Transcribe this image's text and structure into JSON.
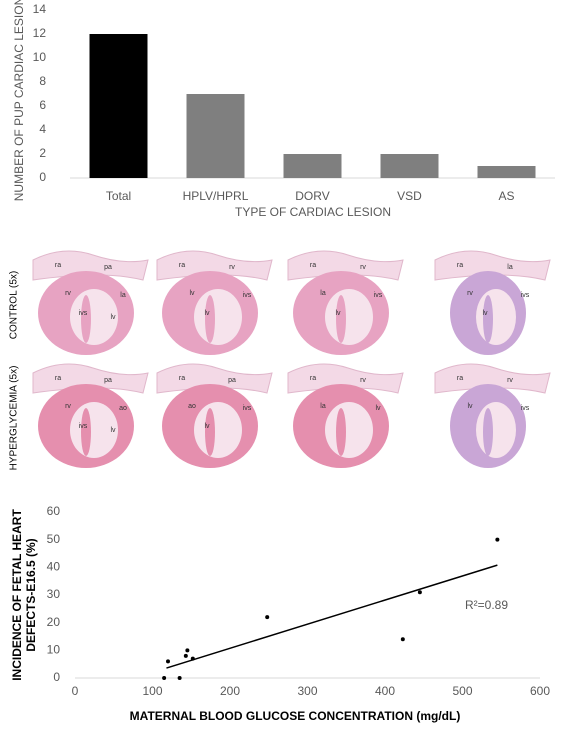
{
  "chart_data": [
    {
      "type": "bar",
      "categories": [
        "Total",
        "HPLV/HPRL",
        "DORV",
        "VSD",
        "AS"
      ],
      "values": [
        12,
        7,
        2,
        2,
        1
      ],
      "colors": [
        "#000000",
        "#7f7f7f",
        "#7f7f7f",
        "#7f7f7f",
        "#7f7f7f"
      ],
      "ylim": [
        0,
        14
      ],
      "yticks": [
        0,
        2,
        4,
        6,
        8,
        10,
        12,
        14
      ],
      "ylabel": "NUMBER OF PUP CARDIAC LESIONS",
      "xlabel": "TYPE OF CARDIAC LESION"
    },
    {
      "type": "scatter",
      "x": [
        115,
        120,
        135,
        143,
        145,
        152,
        248,
        423,
        445,
        545
      ],
      "values": [
        0,
        6,
        0,
        8,
        10,
        7,
        22,
        14,
        31,
        50
      ],
      "color": "#000000",
      "trendline": {
        "x": [
          118,
          545
        ],
        "y": [
          3.6,
          40.8
        ]
      },
      "annotation": "R²=0.89",
      "xlim": [
        0,
        600
      ],
      "xticks": [
        0,
        100,
        200,
        300,
        400,
        500,
        600
      ],
      "ylim": [
        0,
        60
      ],
      "yticks": [
        0,
        10,
        20,
        30,
        40,
        50,
        60
      ],
      "ylabel": [
        "INCIDENCE OF FETAL HEART",
        "DEFECTS-E16.5 (%)"
      ],
      "xlabel": "MATERNAL BLOOD GLUCOSE CONCENTRATION (mg/dL)"
    }
  ],
  "histology": {
    "rows": [
      {
        "label": "CONTROL (5x)",
        "panels": [
          [
            "ra",
            "pa",
            "rv",
            "la",
            "ivs",
            "lv"
          ],
          [
            "ra",
            "rv",
            "lv",
            "ivs",
            "lv"
          ],
          [
            "ra",
            "rv",
            "la",
            "ivs",
            "lv"
          ],
          [
            "ra",
            "la",
            "rv",
            "ivs",
            "lv"
          ]
        ]
      },
      {
        "label": "HYPERGLYCEMIA (5x)",
        "panels": [
          [
            "ra",
            "pa",
            "rv",
            "ao",
            "ivs",
            "lv"
          ],
          [
            "ra",
            "pa",
            "ao",
            "ivs",
            "lv"
          ],
          [
            "ra",
            "rv",
            "la",
            "lv"
          ],
          [
            "ra",
            "rv",
            "lv",
            "ivs"
          ]
        ]
      }
    ]
  }
}
